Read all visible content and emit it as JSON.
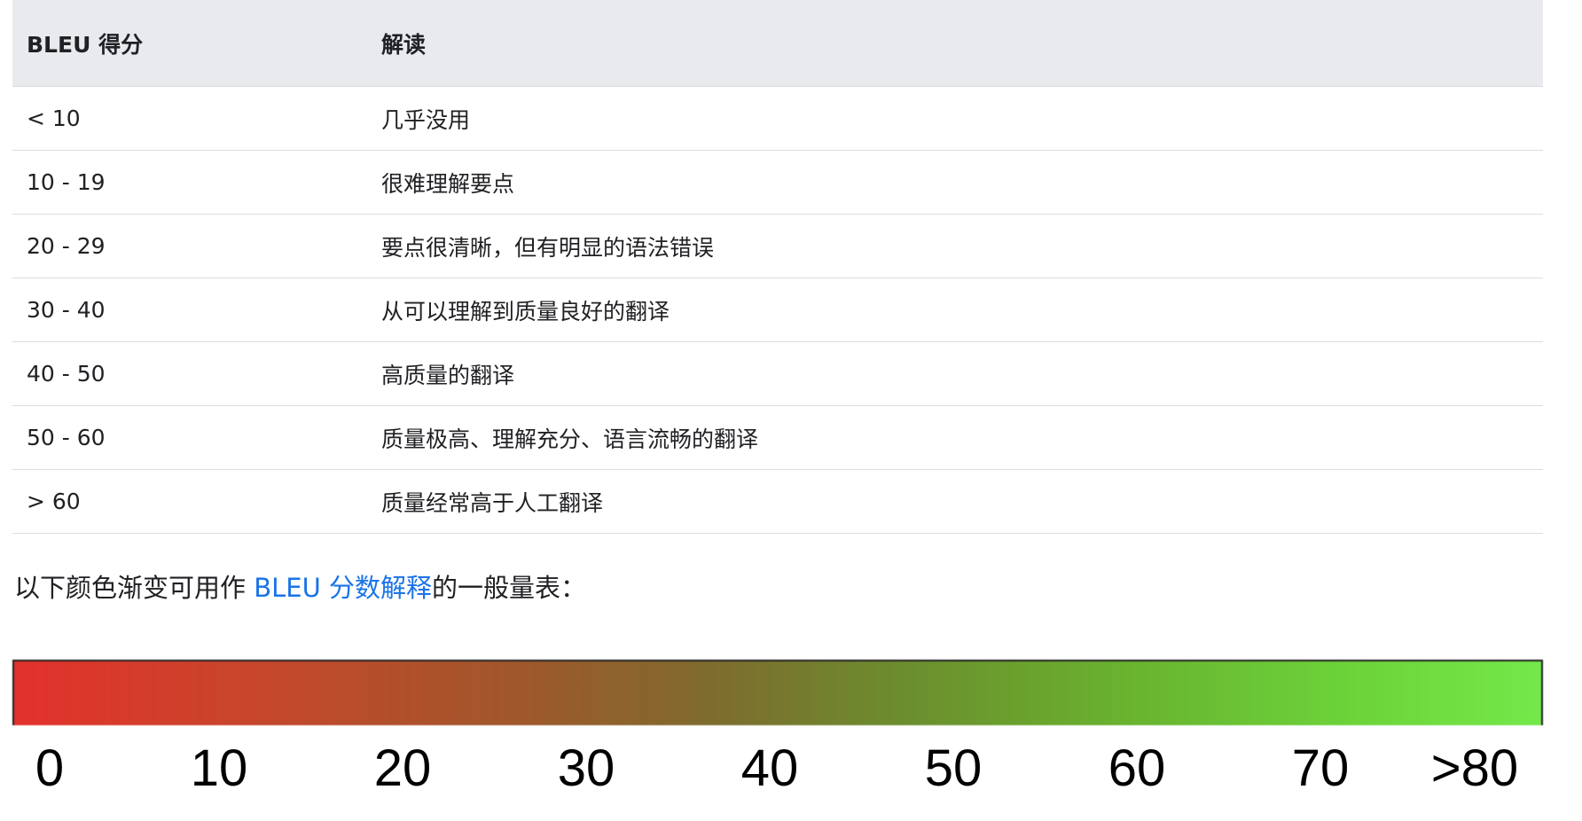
{
  "table": {
    "headers": {
      "score": "BLEU 得分",
      "meaning": "解读"
    },
    "rows": [
      {
        "score": "< 10",
        "meaning": "几乎没用"
      },
      {
        "score": "10 - 19",
        "meaning": "很难理解要点"
      },
      {
        "score": "20 - 29",
        "meaning": "要点很清晰，但有明显的语法错误"
      },
      {
        "score": "30 - 40",
        "meaning": "从可以理解到质量良好的翻译"
      },
      {
        "score": "40 - 50",
        "meaning": "高质量的翻译"
      },
      {
        "score": "50 - 60",
        "meaning": "质量极高、理解充分、语言流畅的翻译"
      },
      {
        "score": "> 60",
        "meaning": "质量经常高于人工翻译"
      }
    ]
  },
  "caption": {
    "before": "以下颜色渐变可用作 ",
    "link": "BLEU 分数解释",
    "after": "的一般量表："
  },
  "gradient": {
    "start_color": "#e3322c",
    "end_color": "#74e84a"
  },
  "scale": {
    "ticks": [
      "0",
      "10",
      "20",
      "30",
      "40",
      "50",
      "60",
      "70",
      ">80"
    ]
  }
}
